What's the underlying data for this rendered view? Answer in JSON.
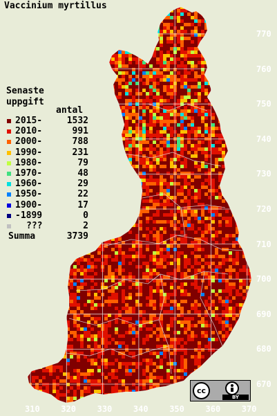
{
  "title": "Vaccinium myrtillus",
  "legend": {
    "heading_line1": "Senaste",
    "heading_line2": "uppgift",
    "count_header": "antal",
    "rows": [
      {
        "label": "2015-",
        "count": "1532",
        "color": "#800000"
      },
      {
        "label": "2010-",
        "count": "991",
        "color": "#e01000"
      },
      {
        "label": "2000-",
        "count": "788",
        "color": "#ff6000"
      },
      {
        "label": "1990-",
        "count": "231",
        "color": "#ffc000"
      },
      {
        "label": "1980-",
        "count": "79",
        "color": "#c0ff40"
      },
      {
        "label": "1970-",
        "count": "48",
        "color": "#40e080"
      },
      {
        "label": "1960-",
        "count": "29",
        "color": "#00e0e0"
      },
      {
        "label": "1950-",
        "count": "22",
        "color": "#0080ff"
      },
      {
        "label": "1900-",
        "count": "17",
        "color": "#0000e0"
      },
      {
        "label": "-1899",
        "count": "0",
        "color": "#000080"
      },
      {
        "label": "???",
        "count": "2",
        "color": "#c0c0c0"
      }
    ],
    "summa_label": "Summa",
    "summa_count": "3739"
  },
  "axes": {
    "y_ticks": [
      "770",
      "760",
      "750",
      "740",
      "730",
      "720",
      "710",
      "700",
      "690",
      "680",
      "670"
    ],
    "x_ticks": [
      "310",
      "320",
      "330",
      "340",
      "350",
      "360",
      "370"
    ]
  },
  "license": {
    "cc_text": "cc",
    "by_icon": "person-icon",
    "by_text": "BY"
  }
}
